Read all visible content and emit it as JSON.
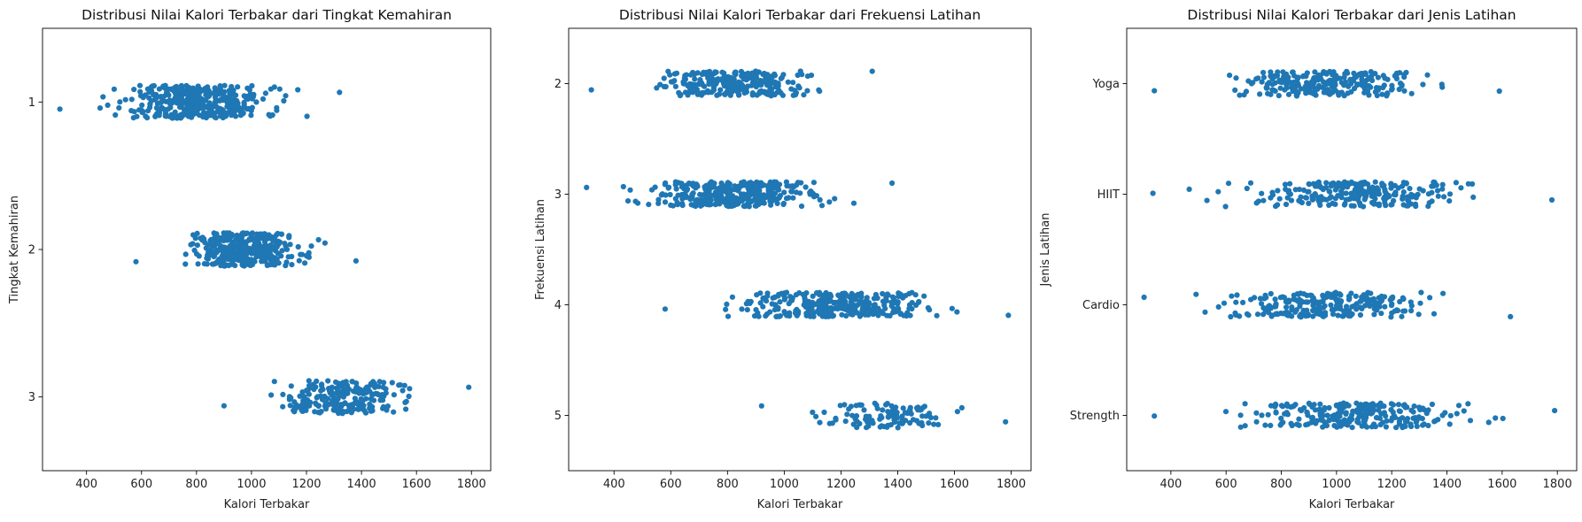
{
  "chart_data": [
    {
      "type": "scatter",
      "title": "Distribusi Nilai Kalori Terbakar dari Tingkat Kemahiran",
      "xlabel": "Kalori Terbakar",
      "ylabel": "Tingkat Kemahiran",
      "xlim": [
        240,
        1870
      ],
      "xticks": [
        400,
        600,
        800,
        1000,
        1200,
        1400,
        1600,
        1800
      ],
      "categories": [
        "1",
        "2",
        "3"
      ],
      "marker_color": "#1f77b4",
      "series": [
        {
          "category": "1",
          "x_range": [
            303,
            1320
          ],
          "count": 380
        },
        {
          "category": "2",
          "x_range": [
            580,
            1380
          ],
          "count": 370
        },
        {
          "category": "3",
          "x_range": [
            900,
            1790
          ],
          "count": 220
        }
      ]
    },
    {
      "type": "scatter",
      "title": "Distribusi Nilai Kalori Terbakar dari Frekuensi Latihan",
      "xlabel": "Kalori Terbakar",
      "ylabel": "Frekuensi Latihan",
      "xlim": [
        240,
        1870
      ],
      "xticks": [
        400,
        600,
        800,
        1000,
        1200,
        1400,
        1600,
        1800
      ],
      "categories": [
        "2",
        "3",
        "4",
        "5"
      ],
      "marker_color": "#1f77b4",
      "series": [
        {
          "category": "2",
          "x_range": [
            320,
            1310
          ],
          "count": 250
        },
        {
          "category": "3",
          "x_range": [
            303,
            1380
          ],
          "count": 350
        },
        {
          "category": "4",
          "x_range": [
            580,
            1790
          ],
          "count": 320
        },
        {
          "category": "5",
          "x_range": [
            920,
            1780
          ],
          "count": 110
        }
      ]
    },
    {
      "type": "scatter",
      "title": "Distribusi Nilai Kalori Terbakar dari Jenis Latihan",
      "xlabel": "Kalori Terbakar",
      "ylabel": "Jenis Latihan",
      "xlim": [
        240,
        1870
      ],
      "xticks": [
        400,
        600,
        800,
        1000,
        1200,
        1400,
        1600,
        1800
      ],
      "categories": [
        "Yoga",
        "HIIT",
        "Cardio",
        "Strength"
      ],
      "marker_color": "#1f77b4",
      "series": [
        {
          "category": "Yoga",
          "x_range": [
            340,
            1590
          ],
          "count": 240
        },
        {
          "category": "HIIT",
          "x_range": [
            335,
            1780
          ],
          "count": 245
        },
        {
          "category": "Cardio",
          "x_range": [
            303,
            1630
          ],
          "count": 240
        },
        {
          "category": "Strength",
          "x_range": [
            340,
            1790
          ],
          "count": 250
        }
      ]
    }
  ]
}
